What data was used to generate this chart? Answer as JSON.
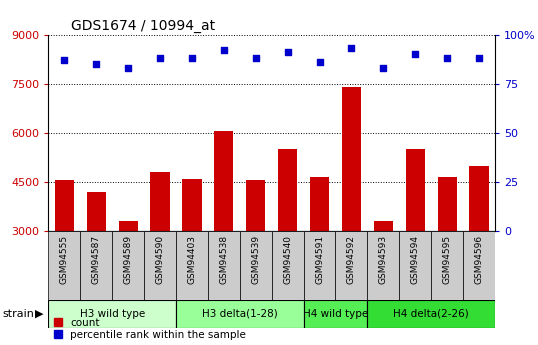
{
  "title": "GDS1674 / 10994_at",
  "samples": [
    "GSM94555",
    "GSM94587",
    "GSM94589",
    "GSM94590",
    "GSM94403",
    "GSM94538",
    "GSM94539",
    "GSM94540",
    "GSM94591",
    "GSM94592",
    "GSM94593",
    "GSM94594",
    "GSM94595",
    "GSM94596"
  ],
  "counts": [
    4550,
    4200,
    3300,
    4800,
    4600,
    6050,
    4550,
    5500,
    4650,
    7400,
    3300,
    5500,
    4650,
    5000
  ],
  "percentiles": [
    87,
    85,
    83,
    88,
    88,
    92,
    88,
    91,
    86,
    93,
    83,
    90,
    88,
    88
  ],
  "groups": [
    {
      "label": "H3 wild type",
      "start": 0,
      "end": 4,
      "color": "#ccffcc"
    },
    {
      "label": "H3 delta(1-28)",
      "start": 4,
      "end": 8,
      "color": "#99ff99"
    },
    {
      "label": "H4 wild type",
      "start": 8,
      "end": 10,
      "color": "#55ee55"
    },
    {
      "label": "H4 delta(2-26)",
      "start": 10,
      "end": 14,
      "color": "#33dd33"
    }
  ],
  "ylim_left": [
    3000,
    9000
  ],
  "ylim_right": [
    0,
    100
  ],
  "yticks_left": [
    3000,
    4500,
    6000,
    7500,
    9000
  ],
  "yticks_right": [
    0,
    25,
    50,
    75,
    100
  ],
  "bar_color": "#cc0000",
  "dot_color": "#0000cc",
  "background_color": "#ffffff",
  "cell_color": "#cccccc"
}
